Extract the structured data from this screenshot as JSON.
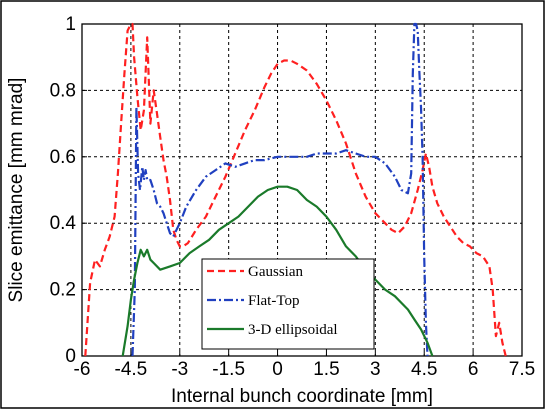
{
  "chart_data": {
    "type": "line",
    "xlabel": "Internal bunch coordinate [mm]",
    "ylabel": "Slice emittance [mm mrad]",
    "xlim": [
      -6,
      7.5
    ],
    "ylim": [
      0,
      1
    ],
    "grid": true,
    "legend_position": "bottom-center",
    "x_ticks": [
      "-6",
      "-4.5",
      "-3",
      "-1.5",
      "0",
      "1.5",
      "3",
      "4.5",
      "6",
      "7.5"
    ],
    "y_ticks": [
      "0",
      "0.2",
      "0.4",
      "0.6",
      "0.8",
      "1"
    ],
    "x_tick_values": [
      -6,
      -4.5,
      -3,
      -1.5,
      0,
      1.5,
      3,
      4.5,
      6,
      7.5
    ],
    "y_tick_values": [
      0,
      0.2,
      0.4,
      0.6,
      0.8,
      1
    ],
    "series": [
      {
        "name": "Gaussian",
        "color": "#ff2020",
        "dash": "dashed",
        "x": [
          -5.9,
          -5.75,
          -5.6,
          -5.45,
          -5.3,
          -5.15,
          -5.0,
          -4.9,
          -4.8,
          -4.7,
          -4.6,
          -4.5,
          -4.45,
          -4.4,
          -4.3,
          -4.2,
          -4.1,
          -4.0,
          -3.9,
          -3.8,
          -3.7,
          -3.6,
          -3.5,
          -3.4,
          -3.3,
          -3.2,
          -3.1,
          -3.0,
          -2.9,
          -2.75,
          -2.5,
          -2.2,
          -1.9,
          -1.6,
          -1.3,
          -1.0,
          -0.7,
          -0.4,
          -0.2,
          0.0,
          0.2,
          0.4,
          0.6,
          0.9,
          1.2,
          1.5,
          1.8,
          2.1,
          2.4,
          2.7,
          3.0,
          3.3,
          3.5,
          3.7,
          3.9,
          4.1,
          4.3,
          4.45,
          4.55,
          4.65,
          4.75,
          4.9,
          5.1,
          5.3,
          5.5,
          5.7,
          5.9,
          6.1,
          6.3,
          6.5,
          6.6,
          6.7,
          6.8,
          6.9,
          7.0
        ],
        "y": [
          0.0,
          0.22,
          0.29,
          0.27,
          0.32,
          0.36,
          0.42,
          0.55,
          0.7,
          0.85,
          0.98,
          1.0,
          1.0,
          0.9,
          0.78,
          0.68,
          0.74,
          0.96,
          0.7,
          0.8,
          0.73,
          0.66,
          0.59,
          0.54,
          0.47,
          0.38,
          0.35,
          0.33,
          0.33,
          0.34,
          0.38,
          0.42,
          0.48,
          0.54,
          0.61,
          0.68,
          0.74,
          0.81,
          0.85,
          0.88,
          0.89,
          0.89,
          0.88,
          0.86,
          0.82,
          0.77,
          0.71,
          0.64,
          0.55,
          0.48,
          0.43,
          0.4,
          0.38,
          0.37,
          0.39,
          0.43,
          0.5,
          0.56,
          0.61,
          0.57,
          0.51,
          0.46,
          0.42,
          0.39,
          0.36,
          0.34,
          0.33,
          0.31,
          0.3,
          0.27,
          0.2,
          0.06,
          0.1,
          0.04,
          0.0
        ]
      },
      {
        "name": "Flat-Top",
        "color": "#2040c0",
        "dash": "dashdot",
        "x": [
          -4.45,
          -4.38,
          -4.33,
          -4.28,
          -4.22,
          -4.15,
          -4.1,
          -4.05,
          -4.0,
          -3.9,
          -3.8,
          -3.7,
          -3.6,
          -3.5,
          -3.4,
          -3.3,
          -3.2,
          -3.1,
          -3.0,
          -2.8,
          -2.5,
          -2.2,
          -1.9,
          -1.6,
          -1.3,
          -1.0,
          -0.7,
          -0.4,
          0.0,
          0.3,
          0.6,
          0.9,
          1.2,
          1.5,
          1.8,
          2.1,
          2.4,
          2.7,
          3.0,
          3.3,
          3.6,
          3.8,
          4.0,
          4.1,
          4.15,
          4.2,
          4.25,
          4.3,
          4.35,
          4.4,
          4.45,
          4.5,
          4.55,
          4.6
        ],
        "y": [
          0.0,
          0.2,
          0.75,
          0.55,
          0.5,
          0.57,
          0.53,
          0.56,
          0.53,
          0.53,
          0.5,
          0.46,
          0.45,
          0.43,
          0.4,
          0.37,
          0.36,
          0.38,
          0.4,
          0.45,
          0.5,
          0.54,
          0.56,
          0.58,
          0.57,
          0.58,
          0.59,
          0.59,
          0.6,
          0.6,
          0.6,
          0.6,
          0.61,
          0.61,
          0.61,
          0.62,
          0.61,
          0.6,
          0.6,
          0.58,
          0.54,
          0.5,
          0.49,
          0.55,
          0.85,
          1.0,
          1.0,
          0.98,
          0.86,
          0.75,
          0.6,
          0.3,
          0.1,
          0.0
        ]
      },
      {
        "name": "3-D ellipsoidal",
        "color": "#1a7a2a",
        "dash": "solid",
        "x": [
          -4.75,
          -4.6,
          -4.5,
          -4.4,
          -4.3,
          -4.2,
          -4.1,
          -4.0,
          -3.9,
          -3.8,
          -3.6,
          -3.3,
          -3.0,
          -2.7,
          -2.4,
          -2.1,
          -1.8,
          -1.5,
          -1.2,
          -0.9,
          -0.6,
          -0.3,
          0.0,
          0.3,
          0.6,
          0.9,
          1.2,
          1.5,
          1.8,
          2.1,
          2.4,
          2.7,
          3.0,
          3.3,
          3.6,
          3.8,
          4.0,
          4.2,
          4.4,
          4.6,
          4.75
        ],
        "y": [
          0.0,
          0.09,
          0.17,
          0.23,
          0.28,
          0.32,
          0.3,
          0.32,
          0.29,
          0.28,
          0.26,
          0.27,
          0.28,
          0.31,
          0.33,
          0.35,
          0.38,
          0.4,
          0.42,
          0.45,
          0.48,
          0.5,
          0.51,
          0.51,
          0.5,
          0.47,
          0.45,
          0.42,
          0.38,
          0.33,
          0.3,
          0.26,
          0.23,
          0.2,
          0.18,
          0.16,
          0.14,
          0.11,
          0.08,
          0.04,
          0.0
        ]
      }
    ]
  }
}
